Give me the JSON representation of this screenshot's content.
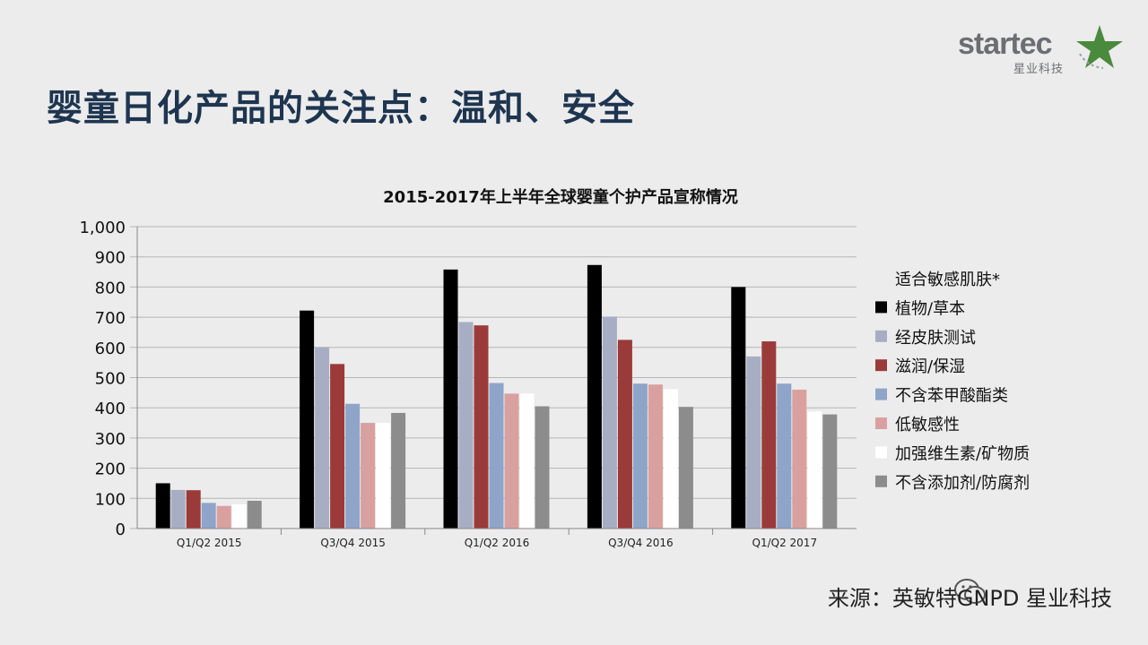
{
  "slide": {
    "title": "婴童日化产品的关注点：温和、安全",
    "logo_text": "startec",
    "logo_sub": "星业科技",
    "footer": "来源：英敏特GNPD 星业科技"
  },
  "colors": {
    "title": "#1e3550",
    "grid": "#b5b5b5"
  },
  "chart_data": {
    "type": "bar",
    "title": "2015-2017年上半年全球婴童个护产品宣称情况",
    "categories": [
      "Q1/Q2 2015",
      "Q3/Q4 2015",
      "Q1/Q2 2016",
      "Q3/Q4 2016",
      "Q1/Q2 2017"
    ],
    "ylim": [
      0,
      1000
    ],
    "yticks": [
      "0",
      "100",
      "200",
      "300",
      "400",
      "500",
      "600",
      "700",
      "800",
      "900",
      "1,000"
    ],
    "grid": true,
    "legend_position": "right",
    "series": [
      {
        "name": "适合敏感肌肤*",
        "color": "#ececec",
        "values": [
          0,
          0,
          0,
          0,
          0
        ]
      },
      {
        "name": "植物/草本",
        "color": "#000000",
        "values": [
          150,
          722,
          858,
          873,
          800
        ]
      },
      {
        "name": "经皮肤测试",
        "color": "#a7aec4",
        "values": [
          128,
          600,
          684,
          702,
          570
        ]
      },
      {
        "name": "滋润/保湿",
        "color": "#9a3b3a",
        "values": [
          127,
          545,
          673,
          625,
          620
        ]
      },
      {
        "name": "不含苯甲酸酯类",
        "color": "#8ea5c9",
        "values": [
          85,
          413,
          482,
          480,
          480
        ]
      },
      {
        "name": "低敏感性",
        "color": "#d9a0a0",
        "values": [
          75,
          350,
          447,
          477,
          460
        ]
      },
      {
        "name": "加强维生素/矿物质",
        "color": "#ffffff",
        "values": [
          80,
          350,
          447,
          462,
          388
        ]
      },
      {
        "name": "不含添加剂/防腐剂",
        "color": "#8c8c8c",
        "values": [
          92,
          383,
          405,
          403,
          378
        ]
      }
    ]
  }
}
